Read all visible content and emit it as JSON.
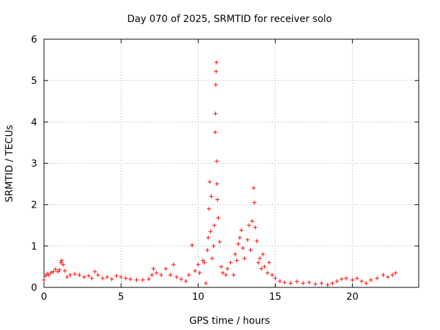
{
  "chart_data": {
    "type": "scatter",
    "title": "Day 070 of 2025, SRMTID for receiver solo",
    "xlabel": "GPS time / hours",
    "ylabel": "SRMTID / TECUs",
    "xlim": [
      0,
      24.3
    ],
    "ylim": [
      0,
      6
    ],
    "xticks": [
      0,
      5,
      10,
      15,
      20
    ],
    "yticks": [
      0,
      1,
      2,
      3,
      4,
      5,
      6
    ],
    "grid": true,
    "marker": "+",
    "marker_color": "#ff0000",
    "series": [
      {
        "name": "SRMTID",
        "points": [
          [
            0.0,
            0.18
          ],
          [
            0.1,
            0.28
          ],
          [
            0.2,
            0.33
          ],
          [
            0.3,
            0.3
          ],
          [
            0.45,
            0.35
          ],
          [
            0.6,
            0.38
          ],
          [
            0.75,
            0.44
          ],
          [
            0.9,
            0.38
          ],
          [
            1.0,
            0.42
          ],
          [
            1.1,
            0.6
          ],
          [
            1.15,
            0.65
          ],
          [
            1.25,
            0.55
          ],
          [
            1.35,
            0.4
          ],
          [
            1.5,
            0.25
          ],
          [
            1.7,
            0.3
          ],
          [
            2.0,
            0.32
          ],
          [
            2.3,
            0.3
          ],
          [
            2.6,
            0.25
          ],
          [
            2.9,
            0.28
          ],
          [
            3.1,
            0.22
          ],
          [
            3.3,
            0.38
          ],
          [
            3.5,
            0.3
          ],
          [
            3.8,
            0.22
          ],
          [
            4.1,
            0.25
          ],
          [
            4.4,
            0.2
          ],
          [
            4.7,
            0.28
          ],
          [
            5.0,
            0.25
          ],
          [
            5.3,
            0.22
          ],
          [
            5.6,
            0.2
          ],
          [
            6.0,
            0.18
          ],
          [
            6.4,
            0.18
          ],
          [
            6.8,
            0.2
          ],
          [
            7.0,
            0.3
          ],
          [
            7.1,
            0.45
          ],
          [
            7.3,
            0.35
          ],
          [
            7.6,
            0.3
          ],
          [
            7.9,
            0.45
          ],
          [
            8.2,
            0.3
          ],
          [
            8.4,
            0.55
          ],
          [
            8.6,
            0.25
          ],
          [
            8.9,
            0.2
          ],
          [
            9.2,
            0.15
          ],
          [
            9.4,
            0.3
          ],
          [
            9.6,
            1.02
          ],
          [
            9.8,
            0.4
          ],
          [
            10.0,
            0.55
          ],
          [
            10.1,
            0.35
          ],
          [
            10.3,
            0.65
          ],
          [
            10.4,
            0.6
          ],
          [
            10.5,
            0.1
          ],
          [
            10.6,
            0.9
          ],
          [
            10.65,
            1.2
          ],
          [
            10.7,
            1.9
          ],
          [
            10.75,
            2.55
          ],
          [
            10.8,
            1.35
          ],
          [
            10.85,
            2.2
          ],
          [
            10.9,
            0.7
          ],
          [
            11.0,
            1.0
          ],
          [
            11.05,
            1.5
          ],
          [
            11.1,
            3.75
          ],
          [
            11.12,
            4.2
          ],
          [
            11.14,
            4.9
          ],
          [
            11.16,
            5.22
          ],
          [
            11.18,
            5.44
          ],
          [
            11.2,
            3.05
          ],
          [
            11.22,
            2.5
          ],
          [
            11.25,
            2.12
          ],
          [
            11.3,
            1.68
          ],
          [
            11.4,
            1.1
          ],
          [
            11.5,
            0.5
          ],
          [
            11.6,
            0.35
          ],
          [
            11.8,
            0.3
          ],
          [
            11.9,
            0.45
          ],
          [
            12.1,
            0.6
          ],
          [
            12.3,
            0.3
          ],
          [
            12.4,
            0.8
          ],
          [
            12.5,
            0.65
          ],
          [
            12.6,
            1.05
          ],
          [
            12.7,
            1.2
          ],
          [
            12.8,
            1.38
          ],
          [
            12.9,
            0.95
          ],
          [
            13.0,
            0.7
          ],
          [
            13.2,
            1.15
          ],
          [
            13.3,
            1.5
          ],
          [
            13.4,
            0.9
          ],
          [
            13.5,
            1.6
          ],
          [
            13.6,
            2.4
          ],
          [
            13.65,
            2.05
          ],
          [
            13.7,
            1.45
          ],
          [
            13.8,
            1.12
          ],
          [
            13.9,
            0.6
          ],
          [
            14.0,
            0.7
          ],
          [
            14.1,
            0.45
          ],
          [
            14.2,
            0.8
          ],
          [
            14.3,
            0.5
          ],
          [
            14.5,
            0.35
          ],
          [
            14.6,
            0.6
          ],
          [
            14.8,
            0.3
          ],
          [
            15.0,
            0.22
          ],
          [
            15.3,
            0.15
          ],
          [
            15.6,
            0.12
          ],
          [
            16.0,
            0.1
          ],
          [
            16.4,
            0.14
          ],
          [
            16.8,
            0.1
          ],
          [
            17.2,
            0.12
          ],
          [
            17.6,
            0.08
          ],
          [
            18.0,
            0.1
          ],
          [
            18.4,
            0.06
          ],
          [
            18.7,
            0.1
          ],
          [
            19.0,
            0.15
          ],
          [
            19.3,
            0.2
          ],
          [
            19.6,
            0.22
          ],
          [
            20.0,
            0.18
          ],
          [
            20.3,
            0.22
          ],
          [
            20.6,
            0.15
          ],
          [
            20.9,
            0.1
          ],
          [
            21.2,
            0.18
          ],
          [
            21.6,
            0.22
          ],
          [
            22.0,
            0.3
          ],
          [
            22.3,
            0.25
          ],
          [
            22.6,
            0.3
          ],
          [
            22.8,
            0.35
          ]
        ]
      }
    ]
  }
}
